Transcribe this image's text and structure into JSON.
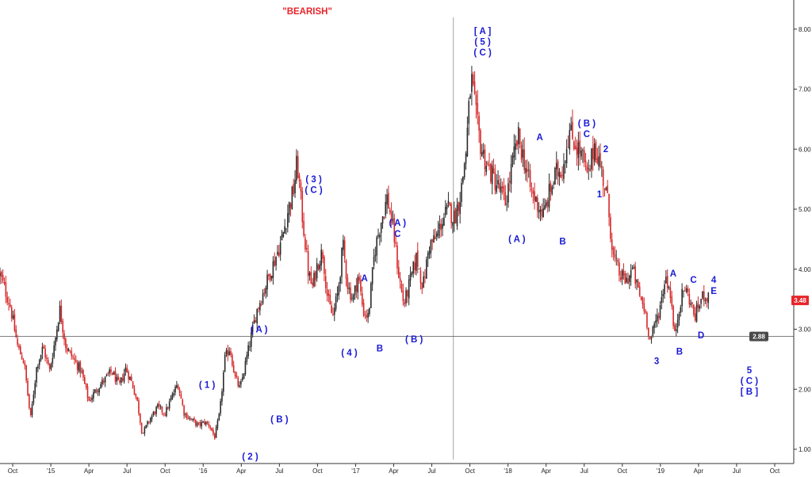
{
  "chart_data": {
    "type": "candlestick",
    "title": "\"BEARISH\"",
    "xlabel": "",
    "ylabel": "",
    "ylim": [
      0.8,
      8.5
    ],
    "x_ticks": [
      {
        "label": "Oct",
        "month": -3
      },
      {
        "label": "'15",
        "month": 0
      },
      {
        "label": "Apr",
        "month": 3
      },
      {
        "label": "Jul",
        "month": 6
      },
      {
        "label": "Oct",
        "month": 9
      },
      {
        "label": "'16",
        "month": 12
      },
      {
        "label": "Apr",
        "month": 15
      },
      {
        "label": "Jul",
        "month": 18
      },
      {
        "label": "Oct",
        "month": 21
      },
      {
        "label": "'17",
        "month": 24
      },
      {
        "label": "Apr",
        "month": 27
      },
      {
        "label": "Jul",
        "month": 30
      },
      {
        "label": "Oct",
        "month": 33
      },
      {
        "label": "'18",
        "month": 36
      },
      {
        "label": "Apr",
        "month": 39
      },
      {
        "label": "Jul",
        "month": 42
      },
      {
        "label": "Oct",
        "month": 45
      },
      {
        "label": "'19",
        "month": 48
      },
      {
        "label": "Apr",
        "month": 51
      },
      {
        "label": "Jul",
        "month": 54
      },
      {
        "label": "Oct",
        "month": 57
      }
    ],
    "y_ticks": [
      {
        "label": "1.00",
        "value": 1
      },
      {
        "label": "2.00",
        "value": 2
      },
      {
        "label": "3.00",
        "value": 3
      },
      {
        "label": "4.00",
        "value": 4
      },
      {
        "label": "5.00",
        "value": 5
      },
      {
        "label": "6.00",
        "value": 6
      },
      {
        "label": "7.00",
        "value": 7
      },
      {
        "label": "8.00",
        "value": 8
      }
    ],
    "price_path": [
      [
        -4.0,
        3.9
      ],
      [
        -3.2,
        3.4
      ],
      [
        -2.6,
        2.7
      ],
      [
        -2.1,
        2.45
      ],
      [
        -1.6,
        1.5
      ],
      [
        -1.1,
        2.4
      ],
      [
        -0.6,
        2.7
      ],
      [
        -0.1,
        2.3
      ],
      [
        0.4,
        2.9
      ],
      [
        0.7,
        3.35
      ],
      [
        1.2,
        2.7
      ],
      [
        1.8,
        2.5
      ],
      [
        2.4,
        2.3
      ],
      [
        3.0,
        1.8
      ],
      [
        3.6,
        2.0
      ],
      [
        4.2,
        2.15
      ],
      [
        4.8,
        2.3
      ],
      [
        5.4,
        2.05
      ],
      [
        5.9,
        2.35
      ],
      [
        6.4,
        2.1
      ],
      [
        6.8,
        1.8
      ],
      [
        7.2,
        1.25
      ],
      [
        7.8,
        1.5
      ],
      [
        8.4,
        1.7
      ],
      [
        9.0,
        1.6
      ],
      [
        9.5,
        1.85
      ],
      [
        10.0,
        2.1
      ],
      [
        10.5,
        1.6
      ],
      [
        11.0,
        1.5
      ],
      [
        11.6,
        1.4
      ],
      [
        12.1,
        1.45
      ],
      [
        12.5,
        1.4
      ],
      [
        12.9,
        1.2
      ],
      [
        13.3,
        1.6
      ],
      [
        13.7,
        2.5
      ],
      [
        14.1,
        2.7
      ],
      [
        14.5,
        2.2
      ],
      [
        14.9,
        2.0
      ],
      [
        15.3,
        2.4
      ],
      [
        15.7,
        2.8
      ],
      [
        16.2,
        3.3
      ],
      [
        16.7,
        3.6
      ],
      [
        17.2,
        3.9
      ],
      [
        17.7,
        4.2
      ],
      [
        18.2,
        4.5
      ],
      [
        18.7,
        5.0
      ],
      [
        19.1,
        5.3
      ],
      [
        19.4,
        5.8
      ],
      [
        19.7,
        5.1
      ],
      [
        20.0,
        4.5
      ],
      [
        20.3,
        3.9
      ],
      [
        20.6,
        3.7
      ],
      [
        21.0,
        4.1
      ],
      [
        21.4,
        4.3
      ],
      [
        21.8,
        3.5
      ],
      [
        22.2,
        3.2
      ],
      [
        22.6,
        3.6
      ],
      [
        23.0,
        4.4
      ],
      [
        23.4,
        3.7
      ],
      [
        23.8,
        3.5
      ],
      [
        24.2,
        3.9
      ],
      [
        24.6,
        3.3
      ],
      [
        25.0,
        3.2
      ],
      [
        25.5,
        4.3
      ],
      [
        26.0,
        4.8
      ],
      [
        26.5,
        5.2
      ],
      [
        27.0,
        4.6
      ],
      [
        27.4,
        3.9
      ],
      [
        27.8,
        3.4
      ],
      [
        28.3,
        3.8
      ],
      [
        28.8,
        4.2
      ],
      [
        29.3,
        3.7
      ],
      [
        29.8,
        4.4
      ],
      [
        30.3,
        4.5
      ],
      [
        30.8,
        4.8
      ],
      [
        31.3,
        5.0
      ],
      [
        31.8,
        4.85
      ],
      [
        32.3,
        5.3
      ],
      [
        32.7,
        6.0
      ],
      [
        33.1,
        7.2
      ],
      [
        33.5,
        6.5
      ],
      [
        33.9,
        6.0
      ],
      [
        34.4,
        5.7
      ],
      [
        34.9,
        5.5
      ],
      [
        35.4,
        5.3
      ],
      [
        35.8,
        5.1
      ],
      [
        36.3,
        5.7
      ],
      [
        36.8,
        6.2
      ],
      [
        37.3,
        5.8
      ],
      [
        37.8,
        5.3
      ],
      [
        38.3,
        5.1
      ],
      [
        38.8,
        4.9
      ],
      [
        39.3,
        5.3
      ],
      [
        39.8,
        5.6
      ],
      [
        40.3,
        5.7
      ],
      [
        40.8,
        6.3
      ],
      [
        41.3,
        6.1
      ],
      [
        41.8,
        5.9
      ],
      [
        42.3,
        5.5
      ],
      [
        42.8,
        6.1
      ],
      [
        43.3,
        5.7
      ],
      [
        43.8,
        5.2
      ],
      [
        44.3,
        4.2
      ],
      [
        44.8,
        3.9
      ],
      [
        45.3,
        3.8
      ],
      [
        45.8,
        4.0
      ],
      [
        46.3,
        3.6
      ],
      [
        46.8,
        3.3
      ],
      [
        47.2,
        2.8
      ],
      [
        47.6,
        3.1
      ],
      [
        48.0,
        3.4
      ],
      [
        48.4,
        3.9
      ],
      [
        48.8,
        3.6
      ],
      [
        49.1,
        2.85
      ],
      [
        49.5,
        3.4
      ],
      [
        49.9,
        3.7
      ],
      [
        50.3,
        3.5
      ],
      [
        50.7,
        3.2
      ],
      [
        51.1,
        3.45
      ],
      [
        51.5,
        3.6
      ],
      [
        51.8,
        3.48
      ]
    ],
    "reference_line": {
      "value": 2.88,
      "label": "2.88"
    },
    "last_price": {
      "value": 3.48,
      "label": "3.48"
    },
    "vertical_marker_month": 31.7,
    "annotations": [
      {
        "text": "\"BEARISH\"",
        "month": 20.2,
        "price": 8.25,
        "color": "#e8252a"
      },
      {
        "text": "[ A ]",
        "month": 34.0,
        "price": 7.92,
        "color": "#1a1ad6"
      },
      {
        "text": "( 5 )",
        "month": 34.0,
        "price": 7.74,
        "color": "#1a1ad6"
      },
      {
        "text": "( C )",
        "month": 34.0,
        "price": 7.56,
        "color": "#1a1ad6"
      },
      {
        "text": "( 3 )",
        "month": 20.7,
        "price": 5.45,
        "color": "#1a1ad6"
      },
      {
        "text": "( C )",
        "month": 20.7,
        "price": 5.27,
        "color": "#1a1ad6"
      },
      {
        "text": "( A )",
        "month": 27.3,
        "price": 4.72,
        "color": "#1a1ad6"
      },
      {
        "text": "C",
        "month": 27.3,
        "price": 4.54,
        "color": "#1a1ad6"
      },
      {
        "text": "A",
        "month": 24.7,
        "price": 3.8,
        "color": "#1a1ad6"
      },
      {
        "text": "( 4 )",
        "month": 23.5,
        "price": 2.56,
        "color": "#1a1ad6"
      },
      {
        "text": "B",
        "month": 25.9,
        "price": 2.63,
        "color": "#1a1ad6"
      },
      {
        "text": "( B )",
        "month": 28.6,
        "price": 2.78,
        "color": "#1a1ad6"
      },
      {
        "text": "( A )",
        "month": 16.4,
        "price": 2.95,
        "color": "#1a1ad6"
      },
      {
        "text": "( 1 )",
        "month": 12.3,
        "price": 2.02,
        "color": "#1a1ad6"
      },
      {
        "text": "( B )",
        "month": 18.0,
        "price": 1.45,
        "color": "#1a1ad6"
      },
      {
        "text": "( 2 )",
        "month": 15.7,
        "price": 0.83,
        "color": "#1a1ad6"
      },
      {
        "text": "A",
        "month": 38.5,
        "price": 6.15,
        "color": "#1a1ad6"
      },
      {
        "text": "( B )",
        "month": 42.2,
        "price": 6.38,
        "color": "#1a1ad6"
      },
      {
        "text": "C",
        "month": 42.2,
        "price": 6.2,
        "color": "#1a1ad6"
      },
      {
        "text": "2",
        "month": 43.7,
        "price": 5.95,
        "color": "#1a1ad6"
      },
      {
        "text": "1",
        "month": 43.2,
        "price": 5.2,
        "color": "#1a1ad6"
      },
      {
        "text": "( A )",
        "month": 36.7,
        "price": 4.45,
        "color": "#1a1ad6"
      },
      {
        "text": "B",
        "month": 40.3,
        "price": 4.41,
        "color": "#1a1ad6"
      },
      {
        "text": "A",
        "month": 49.0,
        "price": 3.88,
        "color": "#1a1ad6"
      },
      {
        "text": "C",
        "month": 50.6,
        "price": 3.77,
        "color": "#1a1ad6"
      },
      {
        "text": "4",
        "month": 52.2,
        "price": 3.77,
        "color": "#1a1ad6"
      },
      {
        "text": "E",
        "month": 52.2,
        "price": 3.59,
        "color": "#1a1ad6"
      },
      {
        "text": "D",
        "month": 51.2,
        "price": 2.85,
        "color": "#1a1ad6"
      },
      {
        "text": "B",
        "month": 49.5,
        "price": 2.58,
        "color": "#1a1ad6"
      },
      {
        "text": "3",
        "month": 47.7,
        "price": 2.42,
        "color": "#1a1ad6"
      },
      {
        "text": "5",
        "month": 55.0,
        "price": 2.27,
        "color": "#1a1ad6"
      },
      {
        "text": "( C )",
        "month": 55.0,
        "price": 2.09,
        "color": "#1a1ad6"
      },
      {
        "text": "[ B ]",
        "month": 55.0,
        "price": 1.91,
        "color": "#1a1ad6"
      }
    ],
    "colors": {
      "up": "#2b2b2b",
      "down": "#d62728",
      "wave_labels": "#1a1ad6",
      "title": "#e8252a",
      "reference_line": "#555555",
      "reference_tag": "#4a4a4a",
      "last_price_tag": "#e8252a"
    },
    "grid": false,
    "legend": "none"
  }
}
